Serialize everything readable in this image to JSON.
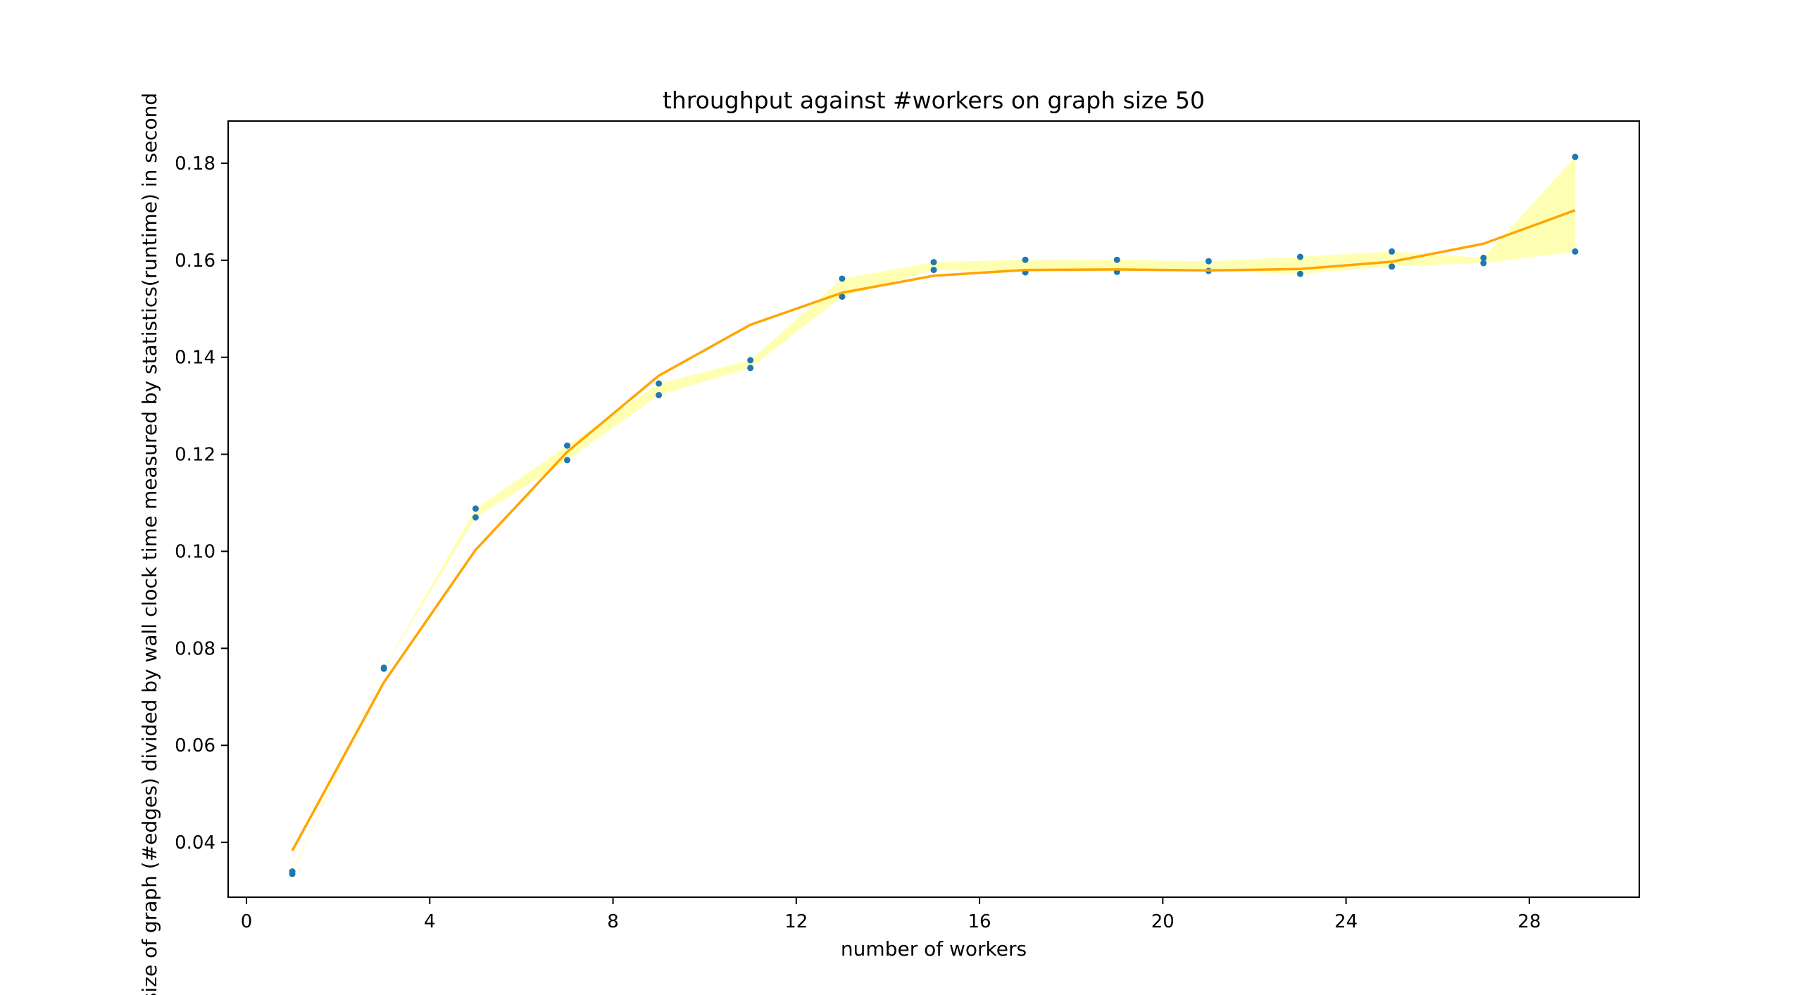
{
  "chart_data": {
    "type": "line",
    "title": "throughput against #workers on graph size 50",
    "xlabel": "number of workers",
    "ylabel": "size of graph (#edges) divided by wall clock time measured by statistics(runtime) in second",
    "xlim": [
      -0.4,
      30.4
    ],
    "ylim": [
      0.0287,
      0.1887
    ],
    "xticks": [
      0,
      4,
      8,
      12,
      16,
      20,
      24,
      28
    ],
    "yticks": [
      0.04,
      0.06,
      0.08,
      0.1,
      0.12,
      0.14,
      0.16,
      0.18
    ],
    "ytick_labels": [
      "0.04",
      "0.06",
      "0.08",
      "0.10",
      "0.12",
      "0.14",
      "0.16",
      "0.18"
    ],
    "grid": false,
    "legend": "none",
    "fit_line": {
      "color": "#ffa500",
      "x": [
        1,
        3,
        5,
        7,
        9,
        11,
        13,
        15,
        17,
        19,
        21,
        23,
        25,
        27,
        29
      ],
      "y": [
        0.0383,
        0.073,
        0.1003,
        0.1205,
        0.1362,
        0.1467,
        0.1533,
        0.1568,
        0.158,
        0.1581,
        0.1579,
        0.1582,
        0.1597,
        0.1634,
        0.1703
      ]
    },
    "band": {
      "color": "#ffff80",
      "x": [
        1,
        3,
        5,
        7,
        9,
        11,
        13,
        15,
        17,
        19,
        21,
        23,
        25,
        27,
        29
      ],
      "lower": [
        0.0335,
        0.0758,
        0.107,
        0.1188,
        0.1322,
        0.1378,
        0.1525,
        0.158,
        0.1575,
        0.1576,
        0.1578,
        0.1572,
        0.1587,
        0.1594,
        0.1618
      ],
      "upper": [
        0.034,
        0.076,
        0.1088,
        0.1218,
        0.1346,
        0.1394,
        0.1562,
        0.1596,
        0.1601,
        0.1601,
        0.1598,
        0.1607,
        0.1618,
        0.1605,
        0.1813
      ]
    },
    "points": {
      "color": "#1f77b4",
      "x": [
        1,
        1,
        3,
        3,
        5,
        5,
        7,
        7,
        9,
        9,
        11,
        11,
        13,
        13,
        15,
        15,
        17,
        17,
        19,
        19,
        21,
        21,
        23,
        23,
        25,
        25,
        27,
        27,
        29,
        29
      ],
      "y": [
        0.0335,
        0.034,
        0.0758,
        0.076,
        0.107,
        0.1088,
        0.1188,
        0.1218,
        0.1322,
        0.1346,
        0.1378,
        0.1394,
        0.1525,
        0.1562,
        0.158,
        0.1596,
        0.1575,
        0.1601,
        0.1576,
        0.1601,
        0.1578,
        0.1598,
        0.1572,
        0.1607,
        0.1587,
        0.1618,
        0.1594,
        0.1605,
        0.1618,
        0.1813
      ]
    }
  }
}
